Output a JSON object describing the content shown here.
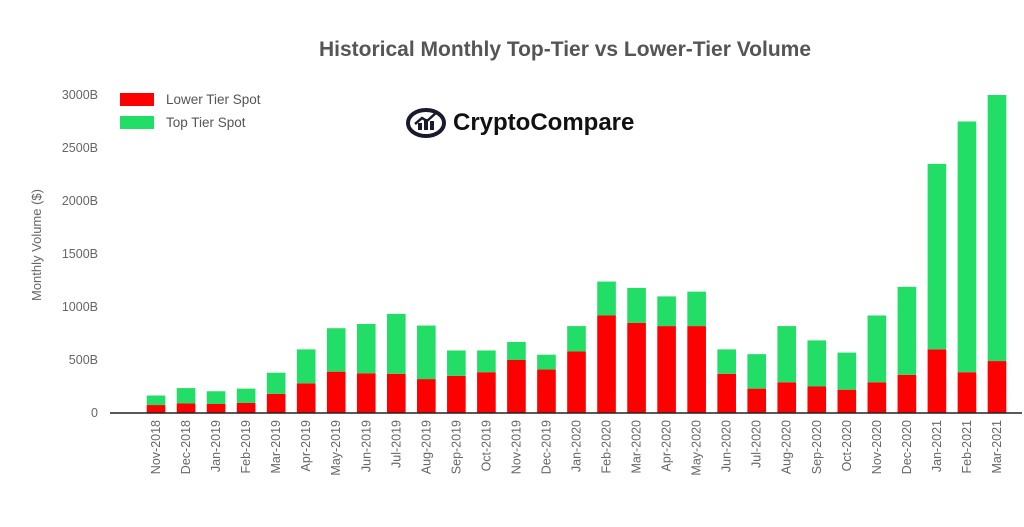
{
  "chart_data": {
    "type": "bar",
    "stacked": true,
    "title": "Historical Monthly Top-Tier vs Lower-Tier Volume",
    "xlabel": "",
    "ylabel": "Monthly Volume ($)",
    "ylim": [
      0,
      3000
    ],
    "yticks": [
      "0",
      "500B",
      "1000B",
      "1500B",
      "2000B",
      "2500B",
      "3000B"
    ],
    "ytick_values": [
      0,
      500,
      1000,
      1500,
      2000,
      2500,
      3000
    ],
    "legend_position": "top-left",
    "categories": [
      "Nov-2018",
      "Dec-2018",
      "Jan-2019",
      "Feb-2019",
      "Mar-2019",
      "Apr-2019",
      "May-2019",
      "Jun-2019",
      "Jul-2019",
      "Aug-2019",
      "Sep-2019",
      "Oct-2019",
      "Nov-2019",
      "Dec-2019",
      "Jan-2020",
      "Feb-2020",
      "Mar-2020",
      "Apr-2020",
      "May-2020",
      "Jun-2020",
      "Jul-2020",
      "Aug-2020",
      "Sep-2020",
      "Oct-2020",
      "Nov-2020",
      "Dec-2020",
      "Jan-2021",
      "Feb-2021",
      "Mar-2021"
    ],
    "series": [
      {
        "name": "Lower Tier Spot",
        "color": "#ff0000",
        "values": [
          75,
          90,
          85,
          95,
          180,
          280,
          390,
          375,
          370,
          320,
          350,
          385,
          500,
          410,
          580,
          920,
          850,
          820,
          820,
          370,
          230,
          290,
          250,
          220,
          290,
          360,
          600,
          385,
          490
        ]
      },
      {
        "name": "Top Tier Spot",
        "color": "#22dd66",
        "values": [
          90,
          145,
          120,
          135,
          200,
          320,
          410,
          465,
          565,
          505,
          240,
          205,
          170,
          140,
          240,
          320,
          330,
          280,
          325,
          230,
          325,
          530,
          435,
          350,
          630,
          830,
          1750,
          2365,
          2510
        ]
      }
    ],
    "grid": false
  },
  "logo": {
    "text": "CryptoCompare",
    "icon": "chart-circle-icon"
  }
}
